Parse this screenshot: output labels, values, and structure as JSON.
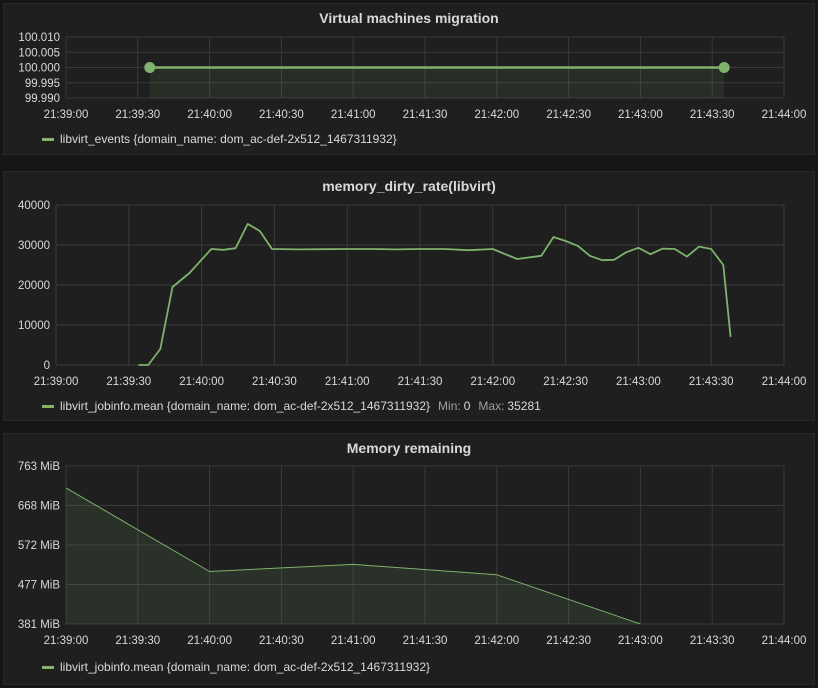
{
  "colors": {
    "series": "#7eb26d",
    "grid": "#3a3a3a",
    "axis_text": "#d8d9da",
    "panel_bg": "#1f1f1f",
    "page_bg": "#161616"
  },
  "panels": [
    {
      "title": "Virtual machines migration",
      "legend": {
        "label": "libvirt_events {domain_name: dom_ac-def-2x512_1467311932}"
      }
    },
    {
      "title": "memory_dirty_rate(libvirt)",
      "legend": {
        "label": "libvirt_jobinfo.mean {domain_name: dom_ac-def-2x512_1467311932}",
        "min_label": "Min:",
        "min_value": "0",
        "max_label": "Max:",
        "max_value": "35281"
      }
    },
    {
      "title": "Memory remaining",
      "legend": {
        "label": "libvirt_jobinfo.mean {domain_name: dom_ac-def-2x512_1467311932}"
      }
    }
  ],
  "chart_data": [
    {
      "type": "line",
      "title": "Virtual machines migration",
      "xlim": [
        "21:39:00",
        "21:44:00"
      ],
      "ylim": [
        99.99,
        100.01
      ],
      "x_ticks": [
        "21:39:00",
        "21:39:30",
        "21:40:00",
        "21:40:30",
        "21:41:00",
        "21:41:30",
        "21:42:00",
        "21:42:30",
        "21:43:00",
        "21:43:30",
        "21:44:00"
      ],
      "y_ticks": [
        "100.010",
        "100.005",
        "100.000",
        "99.995",
        "99.990"
      ],
      "series": [
        {
          "name": "libvirt_events {domain_name: dom_ac-def-2x512_1467311932}",
          "x": [
            "21:39:35",
            "21:43:35"
          ],
          "y": [
            100.0,
            100.0
          ]
        }
      ],
      "grid": true,
      "legend_position": "bottom-left"
    },
    {
      "type": "line",
      "title": "memory_dirty_rate(libvirt)",
      "xlim": [
        "21:39:00",
        "21:44:00"
      ],
      "ylim": [
        0,
        40000
      ],
      "x_ticks": [
        "21:39:00",
        "21:39:30",
        "21:40:00",
        "21:40:30",
        "21:41:00",
        "21:41:30",
        "21:42:00",
        "21:42:30",
        "21:43:00",
        "21:43:30",
        "21:44:00"
      ],
      "y_ticks": [
        "40000",
        "30000",
        "20000",
        "10000",
        "0"
      ],
      "series": [
        {
          "name": "libvirt_jobinfo.mean {domain_name: dom_ac-def-2x512_1467311932}",
          "x": [
            "21:39:34",
            "21:39:38",
            "21:39:43",
            "21:39:48",
            "21:39:55",
            "21:40:04",
            "21:40:09",
            "21:40:14",
            "21:40:19",
            "21:40:24",
            "21:40:29",
            "21:40:40",
            "21:40:50",
            "21:41:00",
            "21:41:10",
            "21:41:20",
            "21:41:30",
            "21:41:40",
            "21:41:50",
            "21:42:00",
            "21:42:10",
            "21:42:20",
            "21:42:25",
            "21:42:30",
            "21:42:35",
            "21:42:40",
            "21:42:45",
            "21:42:50",
            "21:42:55",
            "21:43:00",
            "21:43:05",
            "21:43:10",
            "21:43:15",
            "21:43:20",
            "21:43:25",
            "21:43:30",
            "21:43:35",
            "21:43:38"
          ],
          "y": [
            0,
            0,
            4000,
            19500,
            23000,
            29000,
            28800,
            29200,
            35281,
            33500,
            29000,
            28900,
            28950,
            29000,
            29000,
            28900,
            29000,
            29000,
            28700,
            29000,
            26500,
            27300,
            32000,
            31000,
            29800,
            27300,
            26200,
            26300,
            28200,
            29300,
            27700,
            29100,
            29000,
            27100,
            29600,
            29000,
            25000,
            7000
          ]
        }
      ],
      "grid": true,
      "legend_position": "bottom-left"
    },
    {
      "type": "area",
      "title": "Memory remaining",
      "xlim": [
        "21:39:00",
        "21:44:00"
      ],
      "ylim": [
        381,
        763
      ],
      "y_unit": "MiB",
      "x_ticks": [
        "21:39:00",
        "21:39:30",
        "21:40:00",
        "21:40:30",
        "21:41:00",
        "21:41:30",
        "21:42:00",
        "21:42:30",
        "21:43:00",
        "21:43:30",
        "21:44:00"
      ],
      "y_ticks": [
        "763 MiB",
        "668 MiB",
        "572 MiB",
        "477 MiB",
        "381 MiB"
      ],
      "series": [
        {
          "name": "libvirt_jobinfo.mean {domain_name: dom_ac-def-2x512_1467311932}",
          "x": [
            "21:39:00",
            "21:40:00",
            "21:41:00",
            "21:42:00",
            "21:43:00"
          ],
          "y": [
            710,
            508,
            525,
            500,
            381
          ]
        }
      ],
      "grid": true,
      "legend_position": "bottom-left"
    }
  ]
}
